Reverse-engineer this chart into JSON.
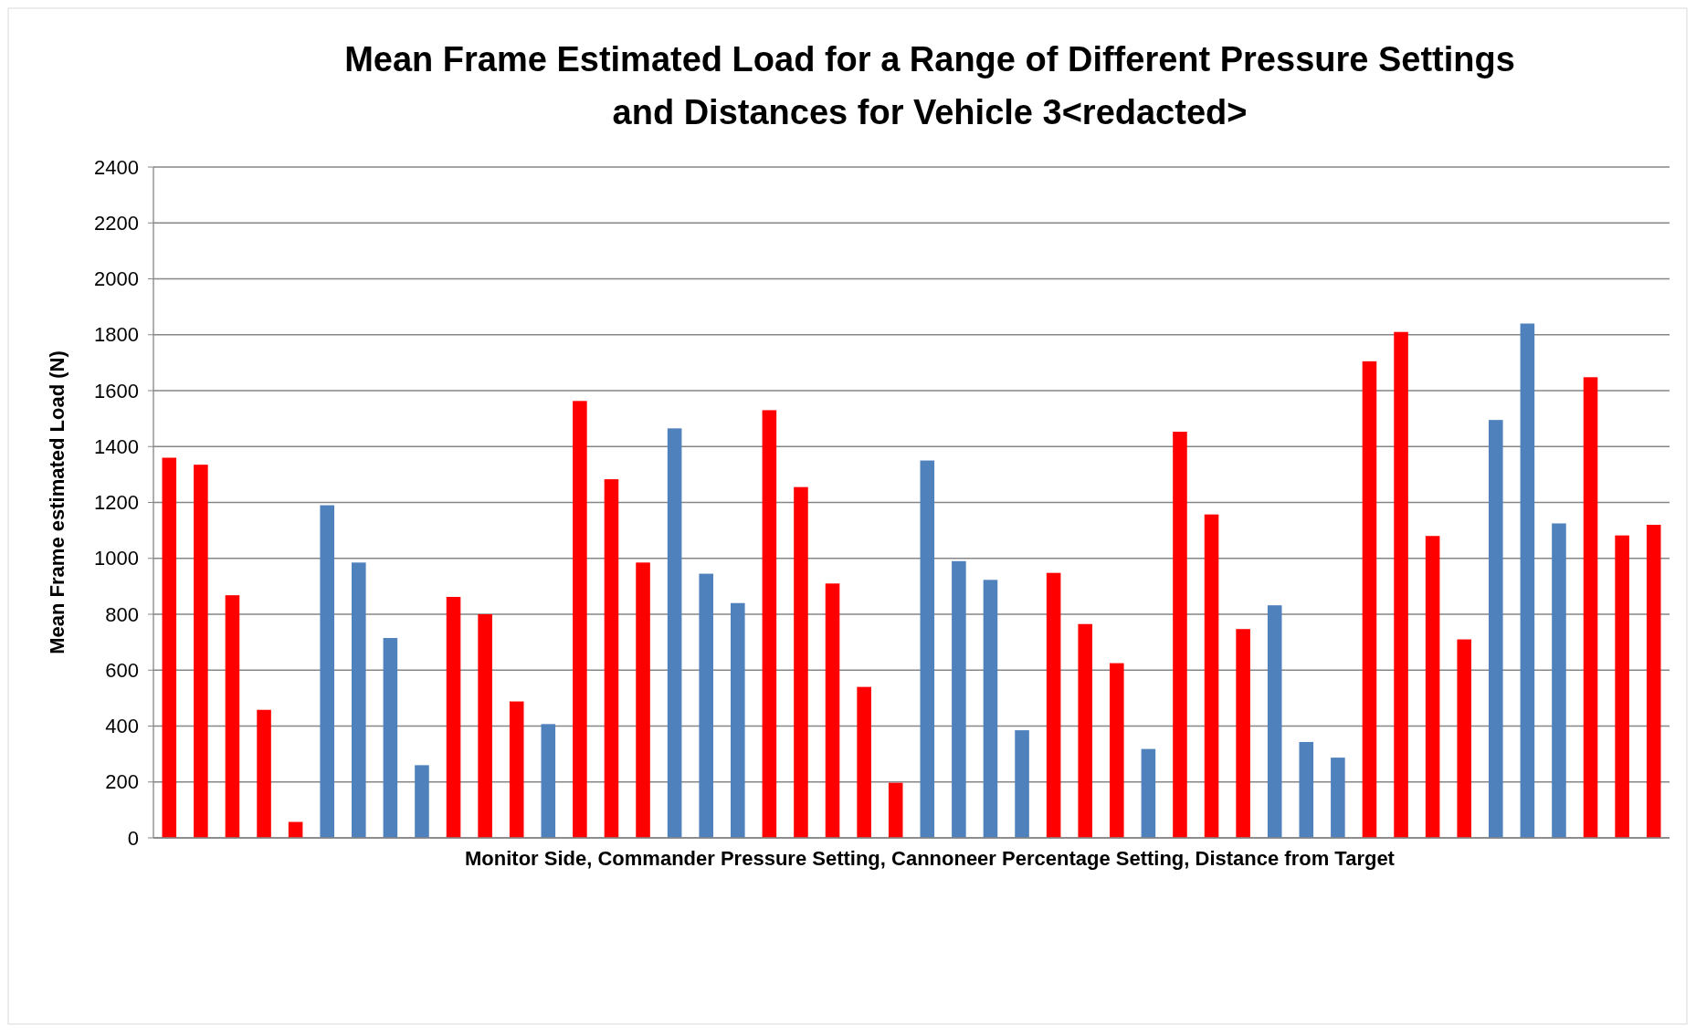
{
  "chart_data": {
    "type": "bar",
    "title": "Mean Frame Estimated Load for a Range of Different Pressure Settings\nand Distances for Vehicle 3<redacted>",
    "xlabel": "Monitor Side, Commander Pressure Setting, Cannoneer Percentage Setting, Distance from Target",
    "ylabel": "Mean Frame estimated Load (N)",
    "categories": [
      null,
      null,
      null,
      null,
      null,
      null,
      null,
      null,
      null,
      null,
      null,
      null,
      null,
      null,
      null,
      null,
      null,
      null,
      null,
      null,
      null,
      null,
      null,
      null,
      null,
      null,
      null,
      null,
      null,
      null,
      null,
      null,
      null,
      null,
      null,
      null,
      null,
      null,
      null,
      null,
      null,
      null,
      null,
      null,
      null,
      null,
      null,
      null
    ],
    "values": [
      1360,
      1335,
      868,
      458,
      57,
      1190,
      985,
      715,
      260,
      862,
      800,
      488,
      407,
      1563,
      1283,
      985,
      1465,
      945,
      840,
      1530,
      1255,
      910,
      540,
      197,
      1350,
      990,
      923,
      385,
      948,
      765,
      625,
      318,
      1453,
      1157,
      747,
      832,
      343,
      287,
      1705,
      1810,
      1080,
      710,
      1495,
      1840,
      1125,
      1648,
      1082,
      1120
    ],
    "colors": [
      "#ff0000",
      "#ff0000",
      "#ff0000",
      "#ff0000",
      "#ff0000",
      "#4f81bd",
      "#4f81bd",
      "#4f81bd",
      "#4f81bd",
      "#ff0000",
      "#ff0000",
      "#ff0000",
      "#4f81bd",
      "#ff0000",
      "#ff0000",
      "#ff0000",
      "#4f81bd",
      "#4f81bd",
      "#4f81bd",
      "#ff0000",
      "#ff0000",
      "#ff0000",
      "#ff0000",
      "#ff0000",
      "#4f81bd",
      "#4f81bd",
      "#4f81bd",
      "#4f81bd",
      "#ff0000",
      "#ff0000",
      "#ff0000",
      "#4f81bd",
      "#ff0000",
      "#ff0000",
      "#ff0000",
      "#4f81bd",
      "#4f81bd",
      "#4f81bd",
      "#ff0000",
      "#ff0000",
      "#ff0000",
      "#ff0000",
      "#4f81bd",
      "#4f81bd",
      "#4f81bd",
      "#ff0000",
      "#ff0000",
      "#ff0000"
    ],
    "ylim": [
      0,
      2400
    ],
    "yticks": [
      0,
      200,
      400,
      600,
      800,
      1000,
      1200,
      1400,
      1600,
      1800,
      2000,
      2200,
      2400
    ],
    "grid": "y"
  }
}
